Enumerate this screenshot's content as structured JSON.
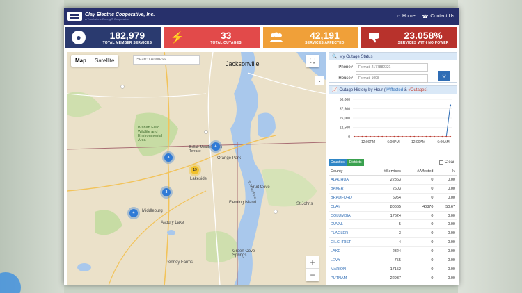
{
  "header": {
    "brand_name": "Clay Electric Cooperative, Inc.",
    "brand_tag": "A Touchstone Energy® Cooperative",
    "nav": [
      {
        "icon": "home-icon",
        "label": "Home"
      },
      {
        "icon": "phone-icon",
        "label": "Contact Us"
      }
    ]
  },
  "stats": [
    {
      "icon": "user-icon",
      "value": "182,979",
      "label": "TOTAL MEMBER SERVICES",
      "color": "#2a3a6f"
    },
    {
      "icon": "bolt-icon",
      "value": "33",
      "label": "TOTAL OUTAGES",
      "color": "#e24a4a"
    },
    {
      "icon": "users-icon",
      "value": "42,191",
      "label": "SERVICES AFFECTED",
      "color": "#f0a039"
    },
    {
      "icon": "thumbs-down-icon",
      "value": "23.058%",
      "label": "SERVICES WITH NO POWER",
      "color": "#b8322c"
    }
  ],
  "map": {
    "tabs": [
      "Map",
      "Satellite"
    ],
    "active_tab": "Map",
    "search_placeholder": "Search Address",
    "labels": {
      "jacksonville": "Jacksonville",
      "branan": "Branan Field\nWildlife and\nEnvironmental\nArea",
      "belair": "Bellair-Meadowbrook\nTerrace",
      "orange_park": "Orange Park",
      "lakeside": "Lakeside",
      "fleming": "Fleming Island",
      "middleburg": "Middleburg",
      "asbury": "Asbury Lake",
      "fruit_cove": "Fruit Cove",
      "st_johns": "St Johns",
      "green_cove": "Green Cove\nSprings",
      "penney": "Penney Farms",
      "st_johns_river": "St Johns River"
    },
    "clusters": [
      {
        "count": "3",
        "color": "blue"
      },
      {
        "count": "4",
        "color": "blue"
      },
      {
        "count": "19",
        "color": "yellow"
      },
      {
        "count": "3",
        "color": "blue"
      },
      {
        "count": "4",
        "color": "blue"
      }
    ],
    "zoom_in": "+",
    "zoom_out": "−"
  },
  "outage_status": {
    "title": "My Outage Status",
    "phone_label": "Phone#",
    "phone_placeholder": "Format: 2177882321",
    "house_label": "House#",
    "house_placeholder": "Format: 1008"
  },
  "history": {
    "title_prefix": "Outage History by Hour (",
    "title_affected": "#Affected",
    "title_mid": " & ",
    "title_outages": "#Outages",
    "title_suffix": ")"
  },
  "chart_data": {
    "type": "line",
    "x_ticks": [
      "12:00PM",
      "6:00PM",
      "12:00AM",
      "6:00AM"
    ],
    "ylim": [
      0,
      50000
    ],
    "y_ticks": [
      "50,000",
      "37,500",
      "25,000",
      "12,500",
      "0"
    ],
    "series": [
      {
        "name": "#Affected",
        "color": "#2f6db5",
        "values": [
          0,
          0,
          0,
          0,
          0,
          0,
          0,
          0,
          0,
          0,
          0,
          0,
          0,
          0,
          0,
          0,
          0,
          0,
          0,
          0,
          0,
          0,
          0,
          0,
          42191
        ]
      },
      {
        "name": "#Outages",
        "color": "#c0392b",
        "values": [
          0,
          0,
          0,
          0,
          0,
          0,
          0,
          0,
          0,
          0,
          0,
          0,
          0,
          0,
          0,
          0,
          0,
          0,
          0,
          0,
          0,
          0,
          0,
          0,
          33
        ]
      }
    ]
  },
  "table": {
    "tab_counties": "Counties",
    "tab_districts": "Districts",
    "clear_label": "Clear",
    "columns": [
      "County",
      "#Services",
      "#Affected",
      "%"
    ],
    "rows": [
      [
        "ALACHUA",
        "22863",
        "0",
        "0.00"
      ],
      [
        "BAKER",
        "2603",
        "0",
        "0.00"
      ],
      [
        "BRADFORD",
        "6954",
        "0",
        "0.00"
      ],
      [
        "CLAY",
        "80665",
        "40870",
        "50.67"
      ],
      [
        "COLUMBIA",
        "17624",
        "0",
        "0.00"
      ],
      [
        "DUVAL",
        "5",
        "0",
        "0.00"
      ],
      [
        "FLAGLER",
        "3",
        "0",
        "0.00"
      ],
      [
        "GILCHRIST",
        "4",
        "0",
        "0.00"
      ],
      [
        "LAKE",
        "2324",
        "0",
        "0.00"
      ],
      [
        "LEVY",
        "755",
        "0",
        "0.00"
      ],
      [
        "MARION",
        "17152",
        "0",
        "0.00"
      ],
      [
        "PUTNAM",
        "22937",
        "0",
        "0.00"
      ]
    ]
  }
}
